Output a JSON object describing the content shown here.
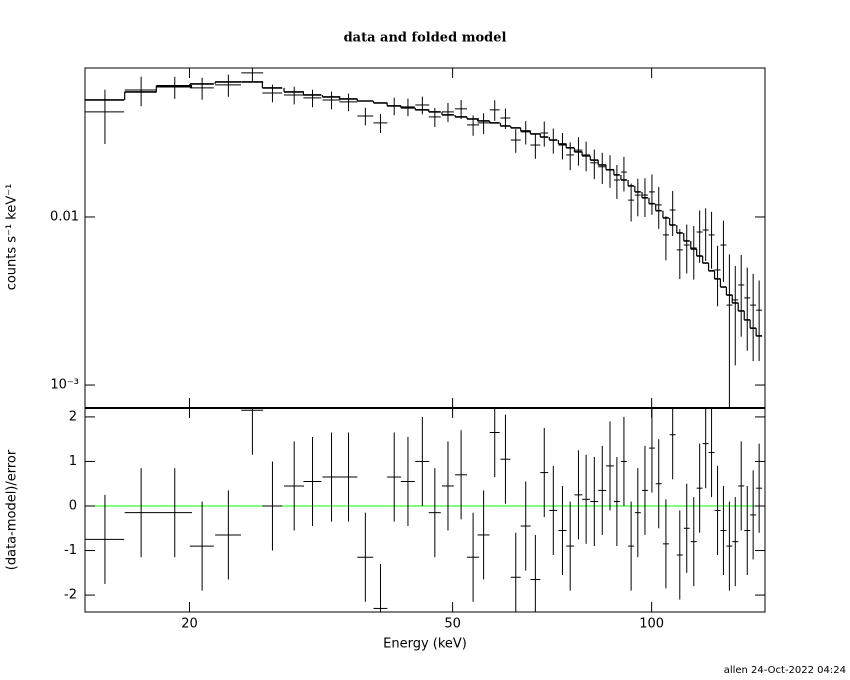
{
  "chart_data": [
    {
      "type": "errorbar",
      "title": "data and folded model",
      "ylabel": "counts s⁻¹ keV⁻¹",
      "xscale": "log",
      "yscale": "log",
      "xlim": [
        13.9,
        148.4
      ],
      "ylim": [
        0.00073,
        0.077
      ],
      "yticks": [
        {
          "value": 0.01,
          "label": "0.01"
        },
        {
          "value": 0.001,
          "label": "10⁻³"
        }
      ],
      "series": [
        {
          "color": "#000000",
          "x": [
            14.9,
            16.9,
            19.0,
            20.9,
            22.9,
            24.9,
            26.7,
            28.8,
            30.7,
            32.8,
            34.8,
            36.9,
            38.9,
            40.8,
            42.8,
            45.0,
            47.0,
            49.2,
            51.5,
            53.7,
            55.7,
            57.9,
            60.1,
            62.3,
            64.5,
            66.7,
            68.8,
            71.0,
            73.3,
            75.3,
            77.5,
            79.6,
            81.9,
            84.2,
            86.5,
            88.6,
            90.8,
            93.1,
            95.3,
            97.7,
            100.1,
            102.5,
            105.1,
            107.6,
            110.3,
            113.0,
            115.8,
            118.2,
            120.7,
            123.2,
            125.8,
            128.4,
            131.1,
            133.8,
            136.6,
            139.5,
            142.4,
            145.4
          ],
          "x_err": [
            1.03,
            0.94,
            1.18,
            0.87,
            1.03,
            0.95,
            0.92,
            1.0,
            0.96,
            1.02,
            1.09,
            1.02,
            0.94,
            0.99,
            1.04,
            1.09,
            0.98,
            1.02,
            1.07,
            1.12,
            1.16,
            1.0,
            1.04,
            1.08,
            1.12,
            1.15,
            0.95,
            0.98,
            1.02,
            1.04,
            1.07,
            1.1,
            1.13,
            1.17,
            1.2,
            0.92,
            0.94,
            0.97,
            0.99,
            1.01,
            1.04,
            1.07,
            1.09,
            1.12,
            1.15,
            1.17,
            1.2,
            1.23,
            1.25,
            1.28,
            1.31,
            1.33,
            1.36,
            1.39,
            1.42,
            1.45,
            1.48,
            1.51
          ],
          "values": [
            0.0422,
            0.057,
            0.0594,
            0.0586,
            0.0611,
            0.072,
            0.0547,
            0.0532,
            0.0511,
            0.0497,
            0.0484,
            0.0399,
            0.0363,
            0.0458,
            0.0452,
            0.0464,
            0.0394,
            0.0422,
            0.044,
            0.0353,
            0.0363,
            0.0434,
            0.0388,
            0.0287,
            0.0321,
            0.0268,
            0.0316,
            0.0287,
            0.0268,
            0.0234,
            0.025,
            0.0234,
            0.021,
            0.0199,
            0.0191,
            0.0166,
            0.0185,
            0.0126,
            0.0135,
            0.0135,
            0.0141,
            0.0118,
            0.00782,
            0.011,
            0.00637,
            0.00681,
            0.00654,
            0.00814,
            0.00837,
            0.00782,
            0.00484,
            0.00681,
            0.00299,
            0.00321,
            0.00394,
            0.0033,
            0.00299,
            0.00279
          ],
          "errors": [
            0.015,
            0.0114,
            0.0089,
            0.0088,
            0.0092,
            0.0086,
            0.0066,
            0.0064,
            0.0061,
            0.006,
            0.0058,
            0.0048,
            0.0047,
            0.0055,
            0.0054,
            0.0056,
            0.0051,
            0.0055,
            0.0057,
            0.0049,
            0.0051,
            0.0061,
            0.0054,
            0.0046,
            0.0051,
            0.0046,
            0.0054,
            0.0049,
            0.0048,
            0.0044,
            0.0048,
            0.0047,
            0.0042,
            0.0042,
            0.0042,
            0.0038,
            0.0043,
            0.0032,
            0.0034,
            0.0035,
            0.0038,
            0.0033,
            0.0023,
            0.0033,
            0.0021,
            0.0022,
            0.0023,
            0.0028,
            0.0029,
            0.0029,
            0.0019,
            0.0027,
            0.003,
            0.0019,
            0.002,
            0.0017,
            0.0016,
            0.0014
          ]
        },
        {
          "color": "#000000",
          "step": true,
          "values": [
            0.0497,
            0.0555,
            0.0603,
            0.0619,
            0.0636,
            0.0636,
            0.0586,
            0.0555,
            0.0532,
            0.0518,
            0.0504,
            0.049,
            0.0477,
            0.0458,
            0.0446,
            0.0434,
            0.0422,
            0.0405,
            0.0394,
            0.0383,
            0.0373,
            0.0363,
            0.0348,
            0.0339,
            0.0325,
            0.0312,
            0.0299,
            0.0287,
            0.0272,
            0.0258,
            0.0244,
            0.0231,
            0.0218,
            0.0204,
            0.0191,
            0.0178,
            0.0166,
            0.0153,
            0.0141,
            0.013,
            0.012,
            0.0109,
            0.00987,
            0.00896,
            0.00803,
            0.0072,
            0.00645,
            0.00586,
            0.00532,
            0.00478,
            0.00428,
            0.00383,
            0.00343,
            0.00308,
            0.00276,
            0.00244,
            0.00218,
            0.00196
          ]
        }
      ]
    },
    {
      "type": "residual",
      "ylabel": "(data-model)/error",
      "xlabel": "Energy (keV)",
      "xscale": "log",
      "xlim": [
        13.9,
        148.4
      ],
      "xticks": [
        20,
        50,
        100
      ],
      "ylim": [
        -2.38,
        2.2
      ],
      "yticks": [
        -2,
        -1,
        0,
        1,
        2
      ],
      "reference_line": 0,
      "reference_color": "#00ff00",
      "series": [
        {
          "color": "#000000",
          "values": [
            -0.75,
            -0.15,
            -0.15,
            -0.9,
            -0.65,
            2.15,
            0.0,
            0.45,
            0.55,
            0.65,
            0.65,
            -1.15,
            -2.3,
            0.65,
            0.55,
            1.0,
            -0.15,
            0.45,
            0.7,
            -1.15,
            -0.65,
            1.65,
            1.05,
            -1.6,
            -0.45,
            -1.65,
            0.75,
            -0.1,
            -0.55,
            -0.9,
            0.25,
            0.15,
            0.1,
            0.35,
            0.9,
            0.1,
            1.0,
            -0.9,
            -0.15,
            0.35,
            1.3,
            0.5,
            -0.85,
            1.6,
            -1.1,
            -0.5,
            -0.8,
            0.4,
            1.4,
            1.2,
            -0.1,
            -0.55,
            -0.9,
            -0.8,
            0.45,
            -0.55,
            -0.2,
            0.4
          ],
          "errors": [
            1,
            1,
            1,
            1,
            1,
            1,
            1,
            1,
            1,
            1,
            1,
            1,
            1,
            1,
            1,
            1,
            1,
            1,
            1,
            1,
            1,
            1,
            1,
            1,
            1,
            1,
            1,
            1,
            1,
            1,
            1,
            1,
            1,
            1,
            1,
            1,
            1,
            1,
            1,
            1,
            1,
            1,
            1,
            1,
            1,
            1,
            1,
            1,
            1,
            1,
            1,
            1,
            1,
            1,
            1,
            1,
            1,
            1
          ]
        }
      ]
    }
  ],
  "footer": "allen 24-Oct-2022 04:24"
}
